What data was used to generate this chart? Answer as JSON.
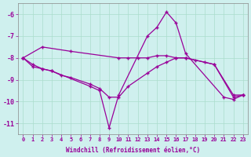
{
  "xlabel": "Windchill (Refroidissement éolien,°C)",
  "background_color": "#cff0ee",
  "grid_color": "#aaddcc",
  "line_color": "#990099",
  "xlim": [
    -0.5,
    23.5
  ],
  "ylim": [
    -11.5,
    -5.5
  ],
  "xticks": [
    0,
    1,
    2,
    3,
    4,
    5,
    6,
    7,
    8,
    9,
    10,
    11,
    12,
    13,
    14,
    15,
    16,
    17,
    18,
    19,
    20,
    21,
    22,
    23
  ],
  "yticks": [
    -11,
    -10,
    -9,
    -8,
    -7,
    -6
  ],
  "line1_x": [
    0,
    2,
    5,
    10,
    11,
    12,
    13,
    14,
    15,
    16,
    17,
    20,
    22,
    23
  ],
  "line1_y": [
    -8.0,
    -7.5,
    -7.7,
    -8.0,
    -8.0,
    -8.0,
    -8.0,
    -7.9,
    -7.9,
    -8.0,
    -8.0,
    -8.3,
    -9.8,
    -9.7
  ],
  "line2_x": [
    0,
    1,
    2,
    3,
    7,
    8,
    9,
    10,
    13,
    14,
    15,
    16,
    17,
    21,
    22,
    23
  ],
  "line2_y": [
    -8.0,
    -8.3,
    -8.5,
    -8.6,
    -9.3,
    -9.5,
    -11.2,
    -9.7,
    -7.0,
    -6.6,
    -5.9,
    -6.4,
    -7.8,
    -9.8,
    -9.9,
    -9.7
  ],
  "line3_x": [
    0,
    1,
    2,
    3,
    4,
    5,
    7,
    8,
    9,
    10,
    11,
    13,
    14,
    15,
    16,
    17,
    18,
    19,
    20,
    22,
    23
  ],
  "line3_y": [
    -8.0,
    -8.4,
    -8.5,
    -8.6,
    -8.8,
    -8.9,
    -9.2,
    -9.4,
    -9.8,
    -9.8,
    -9.3,
    -8.7,
    -8.4,
    -8.2,
    -8.0,
    -8.0,
    -8.1,
    -8.2,
    -8.3,
    -9.7,
    -9.7
  ]
}
